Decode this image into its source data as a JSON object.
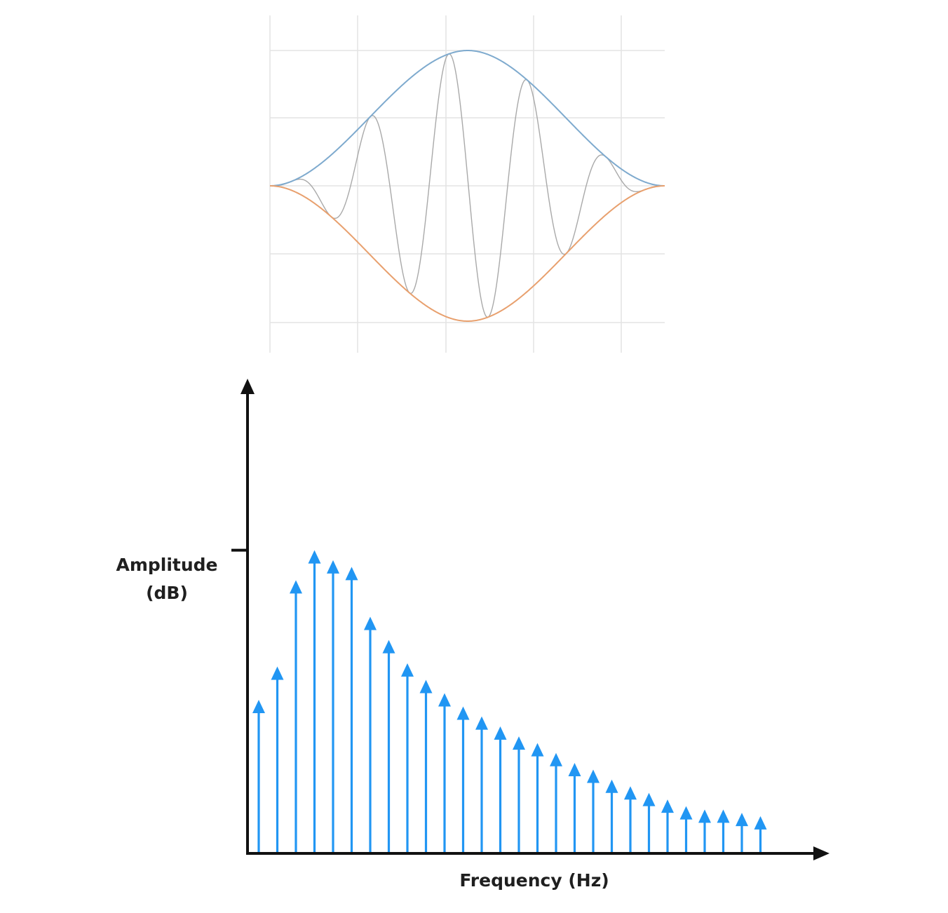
{
  "chart_data": [
    {
      "type": "line",
      "title": "",
      "xlabel": "",
      "ylabel": "",
      "grid": true,
      "series": [
        {
          "role": "upper-envelope",
          "color": "#7EAACE"
        },
        {
          "role": "lower-envelope",
          "color": "#E8A06E"
        },
        {
          "role": "modulated-carrier",
          "color": "#A9A9A9"
        }
      ]
    },
    {
      "type": "bar",
      "style": "stem-arrows",
      "title": "",
      "xlabel": "Frequency (Hz)",
      "ylabel": "Amplitude\n(dB)",
      "y_tick_marked": 0.91,
      "ylim": [
        0,
        1
      ],
      "color": "#2196F3",
      "values": [
        0.46,
        0.56,
        0.82,
        0.91,
        0.88,
        0.86,
        0.71,
        0.64,
        0.57,
        0.52,
        0.48,
        0.44,
        0.41,
        0.38,
        0.35,
        0.33,
        0.3,
        0.27,
        0.25,
        0.22,
        0.2,
        0.18,
        0.16,
        0.14,
        0.13,
        0.13,
        0.12,
        0.11
      ]
    }
  ],
  "labels": {
    "ylabel_line1": "Amplitude",
    "ylabel_line2": "(dB)",
    "xlabel": "Frequency (Hz)"
  }
}
